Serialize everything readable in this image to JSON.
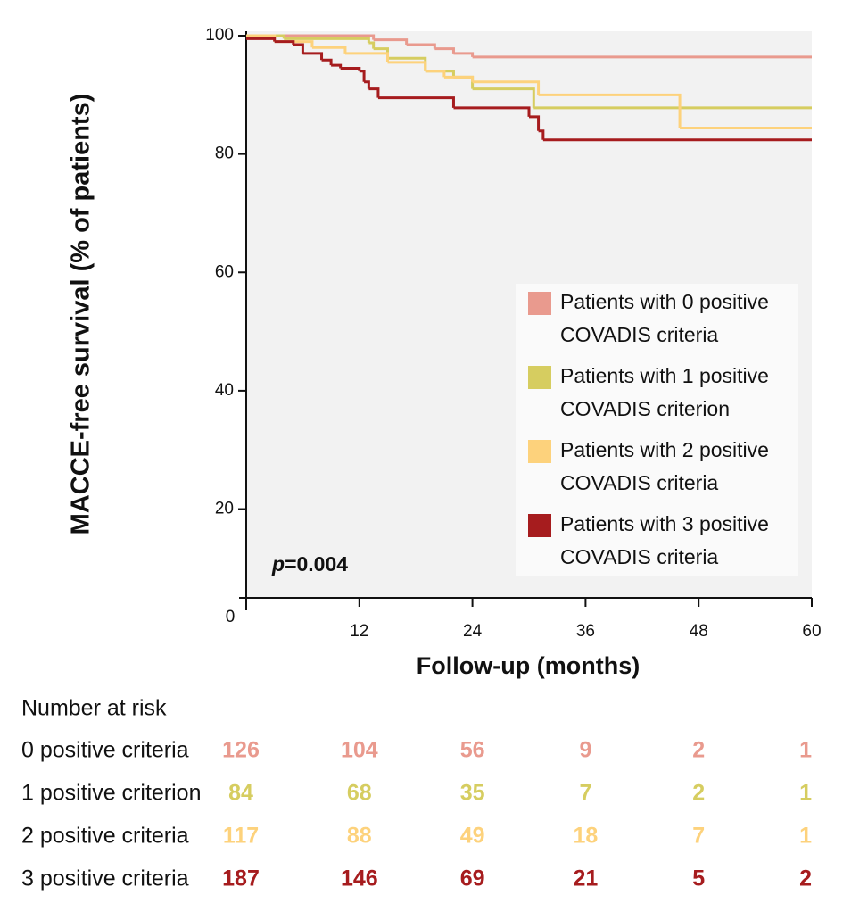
{
  "chart_data": {
    "type": "step",
    "ylabel": "MACCE-free survival (% of patients)",
    "xlabel": "Follow-up (months)",
    "origin_label": "0",
    "xlim": [
      0,
      60
    ],
    "ylim": [
      5,
      100
    ],
    "xticks": [
      12,
      24,
      36,
      48,
      60
    ],
    "yticks": [
      20,
      40,
      60,
      80,
      100
    ],
    "annotation_symbol": "p",
    "annotation_value": "=0.004",
    "series": [
      {
        "name": "Patients with 0 positive COVADIS criteria",
        "color": "#e99a8e",
        "x": [
          0,
          13.5,
          17,
          20,
          22,
          24,
          60
        ],
        "values": [
          100,
          99.3,
          98.5,
          97.8,
          97,
          96.4,
          96.4
        ]
      },
      {
        "name": "Patients with 1 positive COVADIS criterion",
        "color": "#d6cd60",
        "x": [
          0,
          4,
          13,
          13.5,
          15,
          19,
          22,
          24,
          30.5,
          60
        ],
        "values": [
          100,
          99.5,
          98.8,
          97.8,
          96.2,
          94,
          93,
          91,
          87.8,
          87.8
        ]
      },
      {
        "name": "Patients with 2 positive COVADIS criteria",
        "color": "#fdd27c",
        "x": [
          0,
          3,
          7,
          10.5,
          15,
          19,
          21,
          24,
          31,
          46,
          60
        ],
        "values": [
          100,
          99,
          98,
          97,
          95.5,
          94,
          93,
          92.2,
          90,
          84.4,
          84.4
        ]
      },
      {
        "name": "Patients with 3 positive COVADIS criteria",
        "color": "#a61c1e",
        "x": [
          0,
          3,
          5,
          6,
          8,
          9,
          10,
          12,
          12.5,
          13,
          14,
          22,
          30,
          31,
          31.5,
          60
        ],
        "values": [
          99.5,
          99,
          98.5,
          97,
          95.9,
          95,
          94.5,
          94,
          92.2,
          91,
          89.5,
          87.8,
          86.3,
          83.9,
          82.4,
          82.4
        ]
      }
    ],
    "risk_table": {
      "title": "Number at risk",
      "rows": [
        {
          "label": "0 positive criteria",
          "counts": [
            126,
            104,
            56,
            9,
            2,
            1
          ]
        },
        {
          "label": "1 positive criterion",
          "counts": [
            84,
            68,
            35,
            7,
            2,
            1
          ]
        },
        {
          "label": "2 positive criteria",
          "counts": [
            117,
            88,
            49,
            18,
            7,
            1
          ]
        },
        {
          "label": "3 positive criteria",
          "counts": [
            187,
            146,
            69,
            21,
            5,
            2
          ]
        }
      ]
    }
  }
}
